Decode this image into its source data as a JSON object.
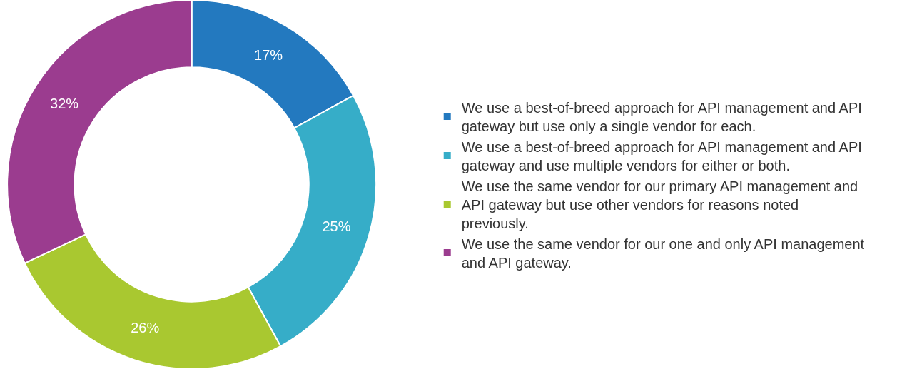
{
  "chart_data": {
    "type": "donut",
    "categories": [
      "We use a best-of-breed approach for API management and API gateway but use only a single vendor for each.",
      "We use a best-of-breed approach for API management and API gateway and use multiple vendors for either or both.",
      "We use the same vendor for our primary API management and API gateway but use other vendors for reasons noted previously.",
      "We use the same vendor for our one and only API management and API gateway."
    ],
    "values": [
      17,
      25,
      26,
      32
    ],
    "colors": [
      "#2379bf",
      "#36adc8",
      "#a9c830",
      "#9b3c8f"
    ],
    "value_labels": [
      "17%",
      "25%",
      "26%",
      "32%"
    ],
    "legend": "right"
  }
}
